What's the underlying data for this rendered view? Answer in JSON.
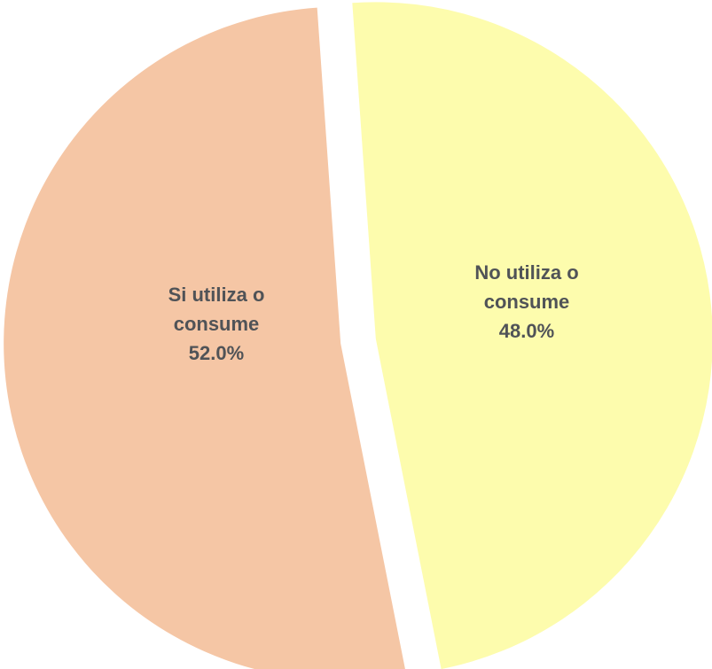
{
  "chart_data": {
    "type": "pie",
    "slices": [
      {
        "name": "No utiliza o consume",
        "value": 48.0,
        "label_lines": [
          "No utiliza o",
          "consume",
          "48.0%"
        ],
        "color": "#fdfcad"
      },
      {
        "name": "Si utiliza o consume",
        "value": 52.0,
        "label_lines": [
          "Si utiliza o",
          "consume",
          "52.0%"
        ],
        "color": "#f5c6a5"
      }
    ],
    "exploded": true,
    "legend": "none"
  }
}
